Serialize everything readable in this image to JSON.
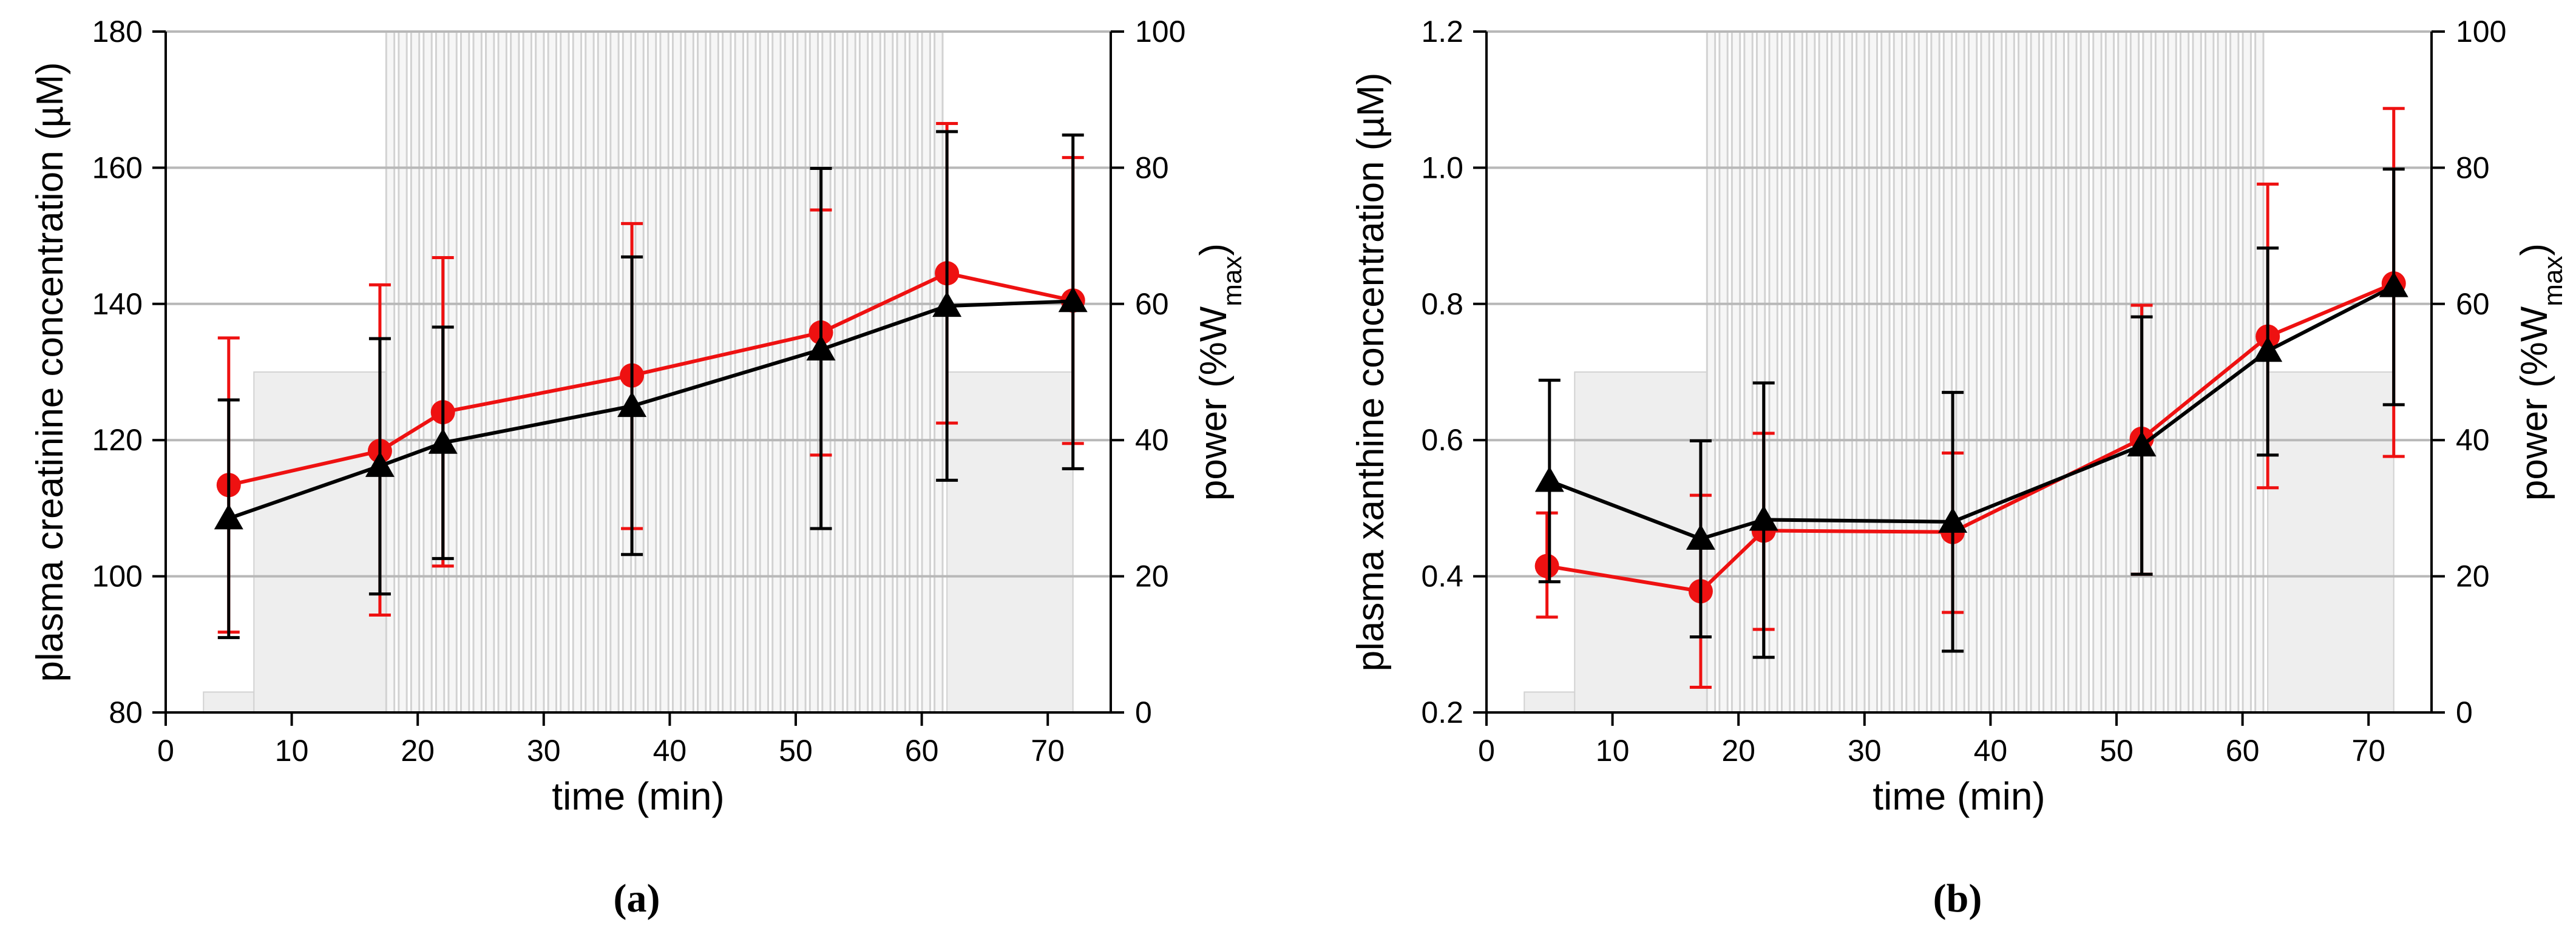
{
  "colors": {
    "series_red": "#ee1111",
    "series_black": "#000000",
    "power_fill": "#eeeeee",
    "power_stroke": "#d2d2d2",
    "grid": "#b8b8b8"
  },
  "power_profile": {
    "label": "power (%Wmax)",
    "segments": [
      {
        "t0": 0,
        "t1": 3,
        "level": 0
      },
      {
        "t0": 3,
        "t1": 7,
        "level": 3
      },
      {
        "t0": 7,
        "t1": 17.5,
        "level": 50
      },
      {
        "t0": 17.5,
        "t1": 62,
        "type": "intervals",
        "level": 100,
        "count": 45
      },
      {
        "t0": 62,
        "t1": 72,
        "level": 50
      },
      {
        "t0": 72,
        "t1": 75,
        "level": 0
      }
    ]
  },
  "chart_data": [
    {
      "type": "line",
      "panel_label": "(a)",
      "title": "",
      "xlabel": "time (min)",
      "ylabel": "plasma creatinine concentration (µM)",
      "y2label_main": "power (%W",
      "y2label_sub": "max",
      "y2label_end": ")",
      "xlim": [
        0,
        75
      ],
      "ylim": [
        80,
        180
      ],
      "y2lim": [
        0,
        100
      ],
      "xticks": [
        "0",
        "10",
        "20",
        "30",
        "40",
        "50",
        "60",
        "70"
      ],
      "yticks": [
        "80",
        "100",
        "120",
        "140",
        "160",
        "180"
      ],
      "y2ticks": [
        "0",
        "20",
        "40",
        "60",
        "80",
        "100"
      ],
      "grid": "horizontal",
      "series": [
        {
          "name": "red-circles",
          "marker": "circle",
          "x": [
            5,
            17,
            22,
            37,
            52,
            62,
            72
          ],
          "values": [
            113.4,
            118.4,
            124.1,
            129.5,
            135.8,
            144.5,
            140.5
          ],
          "err_low": [
            91.8,
            94.3,
            101.5,
            107.0,
            117.8,
            122.5,
            119.5
          ],
          "err_high": [
            135.0,
            142.8,
            146.8,
            151.8,
            153.8,
            166.5,
            161.5
          ]
        },
        {
          "name": "black-triangles",
          "marker": "triangle",
          "x": [
            5,
            17,
            22,
            37,
            52,
            62,
            72
          ],
          "values": [
            108.5,
            116.2,
            119.6,
            125.0,
            133.3,
            139.7,
            140.4
          ],
          "err_low": [
            91.0,
            97.4,
            102.6,
            103.2,
            107.0,
            114.1,
            115.8
          ],
          "err_high": [
            125.9,
            134.9,
            136.6,
            146.9,
            159.9,
            165.3,
            164.8
          ]
        }
      ]
    },
    {
      "type": "line",
      "panel_label": "(b)",
      "title": "",
      "xlabel": "time (min)",
      "ylabel": "plasma xanthine concentration (µM)",
      "y2label_main": "power (%W",
      "y2label_sub": "max",
      "y2label_end": ")",
      "xlim": [
        0,
        75
      ],
      "ylim": [
        0.2,
        1.2
      ],
      "y2lim": [
        0,
        100
      ],
      "xticks": [
        "0",
        "10",
        "20",
        "30",
        "40",
        "50",
        "60",
        "70"
      ],
      "yticks": [
        "0.2",
        "0.4",
        "0.6",
        "0.8",
        "1.0",
        "1.2"
      ],
      "y2ticks": [
        "0",
        "20",
        "40",
        "60",
        "80",
        "100"
      ],
      "grid": "horizontal",
      "series": [
        {
          "name": "red-circles",
          "marker": "circle",
          "x": [
            4.8,
            17,
            22,
            37,
            52,
            62,
            72
          ],
          "values": [
            0.415,
            0.378,
            0.467,
            0.465,
            0.602,
            0.752,
            0.83
          ],
          "err_low": [
            0.34,
            0.237,
            0.322,
            0.347,
            0.403,
            0.53,
            0.576
          ],
          "err_high": [
            0.493,
            0.519,
            0.61,
            0.581,
            0.798,
            0.976,
            1.087
          ]
        },
        {
          "name": "black-triangles",
          "marker": "triangle",
          "x": [
            5,
            17,
            22,
            37,
            52,
            62,
            72
          ],
          "values": [
            0.54,
            0.455,
            0.483,
            0.48,
            0.592,
            0.731,
            0.826
          ],
          "err_low": [
            0.392,
            0.311,
            0.281,
            0.29,
            0.403,
            0.578,
            0.652
          ],
          "err_high": [
            0.688,
            0.599,
            0.684,
            0.67,
            0.781,
            0.882,
            0.998
          ]
        }
      ]
    }
  ]
}
